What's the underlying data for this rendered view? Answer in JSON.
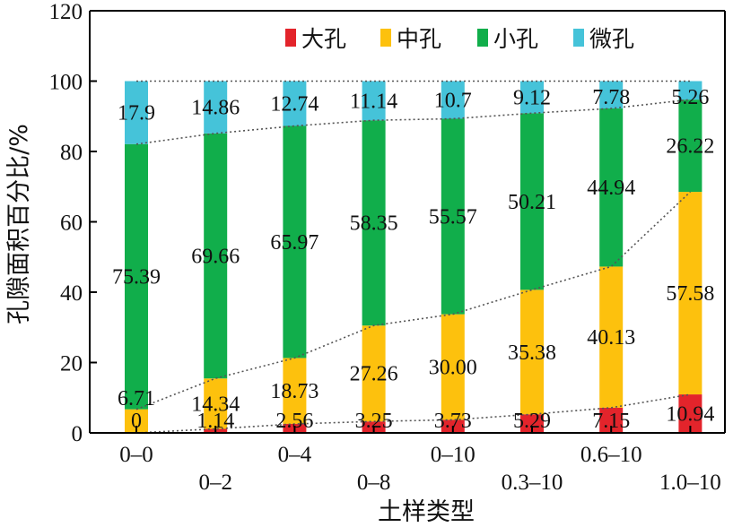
{
  "chart_data": {
    "type": "bar",
    "stacked": true,
    "title": "",
    "xlabel": "土样类型",
    "ylabel": "孔隙面积百分比/%",
    "ylim": [
      0,
      120
    ],
    "yticks": [
      "0",
      "20",
      "40",
      "60",
      "80",
      "100",
      "120"
    ],
    "grid": false,
    "legend_position": "top-right",
    "categories": [
      "0–0",
      "0–2",
      "0–4",
      "0–8",
      "0–10",
      "0.3–10",
      "0.6–10",
      "1.0–10"
    ],
    "series": [
      {
        "name": "大孔",
        "color": "#e3242b",
        "values": [
          0,
          1.14,
          2.56,
          3.25,
          3.73,
          5.29,
          7.15,
          10.94
        ],
        "labels": [
          "0",
          "1.14",
          "2.56",
          "3.25",
          "3.73",
          "5.29",
          "7.15",
          "10.94"
        ]
      },
      {
        "name": "中孔",
        "color": "#fdc10d",
        "values": [
          6.71,
          14.34,
          18.73,
          27.26,
          30.0,
          35.38,
          40.13,
          57.58
        ],
        "labels": [
          "6.71",
          "14.34",
          "18.73",
          "27.26",
          "30.00",
          "35.38",
          "40.13",
          "57.58"
        ]
      },
      {
        "name": "小孔",
        "color": "#11ae4b",
        "values": [
          75.39,
          69.66,
          65.97,
          58.35,
          55.57,
          50.21,
          44.94,
          26.22
        ],
        "labels": [
          "75.39",
          "69.66",
          "65.97",
          "58.35",
          "55.57",
          "50.21",
          "44.94",
          "26.22"
        ]
      },
      {
        "name": "微孔",
        "color": "#45c3d9",
        "values": [
          17.9,
          14.86,
          12.74,
          11.14,
          10.7,
          9.12,
          7.78,
          5.26
        ],
        "labels": [
          "17.9",
          "14.86",
          "12.74",
          "11.14",
          "10.7",
          "9.12",
          "7.78",
          "5.26"
        ]
      }
    ],
    "connector_lines": "dotted"
  }
}
